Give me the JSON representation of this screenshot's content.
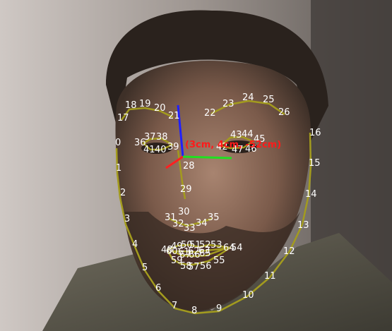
{
  "scene": {
    "description_kind": "webcam frame with facial landmark overlay",
    "colors": {
      "contour": "#a39b1e",
      "label": "#ffffff",
      "pose_text": "#ff1a1a",
      "axis_x": "#ff2020",
      "axis_y": "#20e020",
      "axis_z": "#2020ff"
    }
  },
  "pose_readout": "(3cm, 4cm, -52cm)",
  "landmarks": [
    {
      "id": "0",
      "label": "0"
    },
    {
      "id": "1",
      "label": "1"
    },
    {
      "id": "2",
      "label": "2"
    },
    {
      "id": "3",
      "label": "3"
    },
    {
      "id": "4",
      "label": "4"
    },
    {
      "id": "5",
      "label": "5"
    },
    {
      "id": "6",
      "label": "6"
    },
    {
      "id": "7",
      "label": "7"
    },
    {
      "id": "8",
      "label": "8"
    },
    {
      "id": "9",
      "label": "9"
    },
    {
      "id": "10",
      "label": "10"
    },
    {
      "id": "11",
      "label": "11"
    },
    {
      "id": "12",
      "label": "12"
    },
    {
      "id": "13",
      "label": "13"
    },
    {
      "id": "14",
      "label": "14"
    },
    {
      "id": "15",
      "label": "15"
    },
    {
      "id": "16",
      "label": "16"
    },
    {
      "id": "17",
      "label": "17"
    },
    {
      "id": "18",
      "label": "18"
    },
    {
      "id": "19",
      "label": "19"
    },
    {
      "id": "20",
      "label": "20"
    },
    {
      "id": "21",
      "label": "21"
    },
    {
      "id": "22",
      "label": "22"
    },
    {
      "id": "23",
      "label": "23"
    },
    {
      "id": "24",
      "label": "24"
    },
    {
      "id": "25",
      "label": "25"
    },
    {
      "id": "26",
      "label": "26"
    },
    {
      "id": "28",
      "label": "28"
    },
    {
      "id": "29",
      "label": "29"
    },
    {
      "id": "30",
      "label": "30"
    },
    {
      "id": "31",
      "label": "31"
    },
    {
      "id": "32",
      "label": "32"
    },
    {
      "id": "33",
      "label": "33"
    },
    {
      "id": "34",
      "label": "34"
    },
    {
      "id": "35",
      "label": "35"
    },
    {
      "id": "36",
      "label": "36"
    },
    {
      "id": "37",
      "label": "37"
    },
    {
      "id": "38",
      "label": "38"
    },
    {
      "id": "39",
      "label": "39"
    },
    {
      "id": "40",
      "label": "40"
    },
    {
      "id": "41",
      "label": "41"
    },
    {
      "id": "42",
      "label": "42"
    },
    {
      "id": "43",
      "label": "43"
    },
    {
      "id": "44",
      "label": "44"
    },
    {
      "id": "45",
      "label": "45"
    },
    {
      "id": "46",
      "label": "46"
    },
    {
      "id": "47",
      "label": "47"
    },
    {
      "id": "48",
      "label": "48"
    },
    {
      "id": "49",
      "label": "49"
    },
    {
      "id": "50",
      "label": "50"
    },
    {
      "id": "51",
      "label": "51"
    },
    {
      "id": "52",
      "label": "52"
    },
    {
      "id": "53",
      "label": "53"
    },
    {
      "id": "54",
      "label": "54"
    },
    {
      "id": "55",
      "label": "55"
    },
    {
      "id": "56",
      "label": "56"
    },
    {
      "id": "57",
      "label": "57"
    },
    {
      "id": "58",
      "label": "58"
    },
    {
      "id": "59",
      "label": "59"
    },
    {
      "id": "60",
      "label": "60"
    },
    {
      "id": "61",
      "label": "61"
    },
    {
      "id": "62",
      "label": "62"
    },
    {
      "id": "63",
      "label": "63"
    },
    {
      "id": "64",
      "label": "64"
    },
    {
      "id": "65",
      "label": "65"
    },
    {
      "id": "66",
      "label": "66"
    },
    {
      "id": "67",
      "label": "67"
    }
  ]
}
